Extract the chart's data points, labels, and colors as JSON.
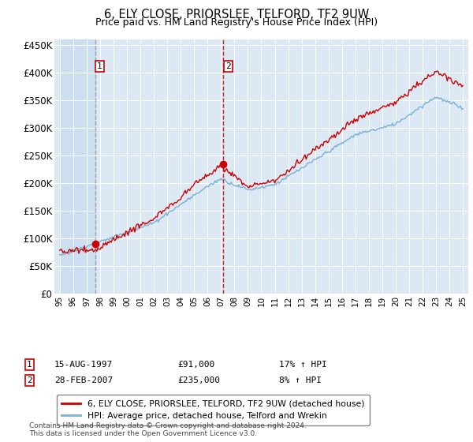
{
  "title": "6, ELY CLOSE, PRIORSLEE, TELFORD, TF2 9UW",
  "subtitle": "Price paid vs. HM Land Registry's House Price Index (HPI)",
  "ylim": [
    0,
    460000
  ],
  "yticks": [
    0,
    50000,
    100000,
    150000,
    200000,
    250000,
    300000,
    350000,
    400000,
    450000
  ],
  "ytick_labels": [
    "£0",
    "£50K",
    "£100K",
    "£150K",
    "£200K",
    "£250K",
    "£300K",
    "£350K",
    "£400K",
    "£450K"
  ],
  "plot_bg_color": "#dce9f5",
  "line1_color": "#cc0000",
  "line2_color": "#7ab0d4",
  "marker_color": "#cc0000",
  "vline1_color": "#888888",
  "vline2_color": "#cc0000",
  "legend_line1": "6, ELY CLOSE, PRIORSLEE, TELFORD, TF2 9UW (detached house)",
  "legend_line2": "HPI: Average price, detached house, Telford and Wrekin",
  "annotation1_label": "1",
  "annotation1_date": "15-AUG-1997",
  "annotation1_price": "£91,000",
  "annotation1_hpi": "17% ↑ HPI",
  "annotation2_label": "2",
  "annotation2_date": "28-FEB-2007",
  "annotation2_price": "£235,000",
  "annotation2_hpi": "8% ↑ HPI",
  "footer": "Contains HM Land Registry data © Crown copyright and database right 2024.\nThis data is licensed under the Open Government Licence v3.0.",
  "sale1_year": 1997.625,
  "sale1_price": 91000,
  "sale2_year": 2007.167,
  "sale2_price": 235000,
  "year_start": 1995,
  "year_end": 2025
}
